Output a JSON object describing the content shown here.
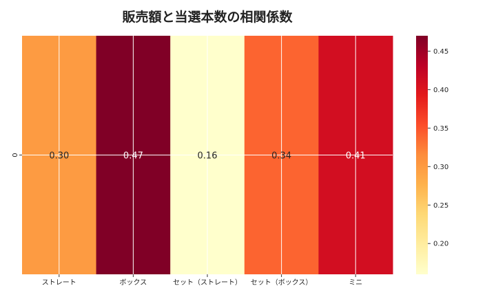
{
  "chart_data": {
    "type": "heatmap",
    "title": "販売額と当選本数の相関係数",
    "categories": [
      "ストレート",
      "ボックス",
      "セット（ストレート）",
      "セット（ボックス）",
      "ミニ"
    ],
    "rows": [
      "0"
    ],
    "values": [
      [
        0.3,
        0.47,
        0.16,
        0.34,
        0.41
      ]
    ],
    "labels": [
      "0.30",
      "0.47",
      "0.16",
      "0.34",
      "0.41"
    ],
    "colormap": "YlOrRd",
    "vmin": 0.16,
    "vmax": 0.47,
    "colorbar_ticks": [
      0.2,
      0.25,
      0.3,
      0.35,
      0.4,
      0.45
    ],
    "colorbar_tick_labels": [
      "0.20",
      "0.25",
      "0.30",
      "0.35",
      "0.40",
      "0.45"
    ],
    "grid": true
  }
}
